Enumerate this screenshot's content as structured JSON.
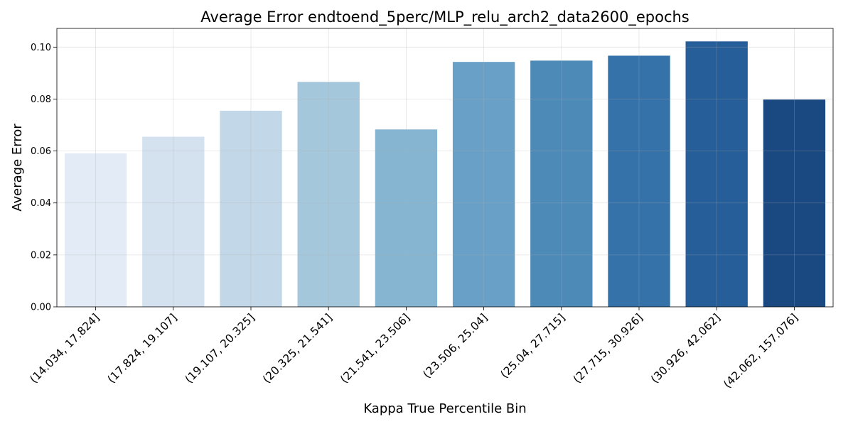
{
  "chart_data": {
    "type": "bar",
    "title": "Average Error endtoend_5perc/MLP_relu_arch2_data2600_epochs",
    "xlabel": "Kappa True Percentile Bin",
    "ylabel": "Average Error",
    "categories": [
      "(14.034, 17.824]",
      "(17.824, 19.107]",
      "(19.107, 20.325]",
      "(20.325, 21.541]",
      "(21.541, 23.506]",
      "(23.506, 25.04]",
      "(25.04, 27.715]",
      "(27.715, 30.926]",
      "(30.926, 42.062]",
      "(42.062, 157.076]"
    ],
    "values": [
      0.0591,
      0.0655,
      0.0755,
      0.0866,
      0.0683,
      0.0943,
      0.0948,
      0.0967,
      0.1022,
      0.0798
    ],
    "colors": [
      "#e3ecf6",
      "#d4e2ef",
      "#c2d7e7",
      "#a4c7dc",
      "#86b5d1",
      "#68a0c7",
      "#4e8ab8",
      "#3572aa",
      "#255e99",
      "#1a4880"
    ],
    "ylim": [
      0,
      0.1072
    ],
    "yticks": [
      "0.00",
      "0.02",
      "0.04",
      "0.06",
      "0.08",
      "0.10"
    ],
    "grid": true,
    "legend": "none"
  }
}
